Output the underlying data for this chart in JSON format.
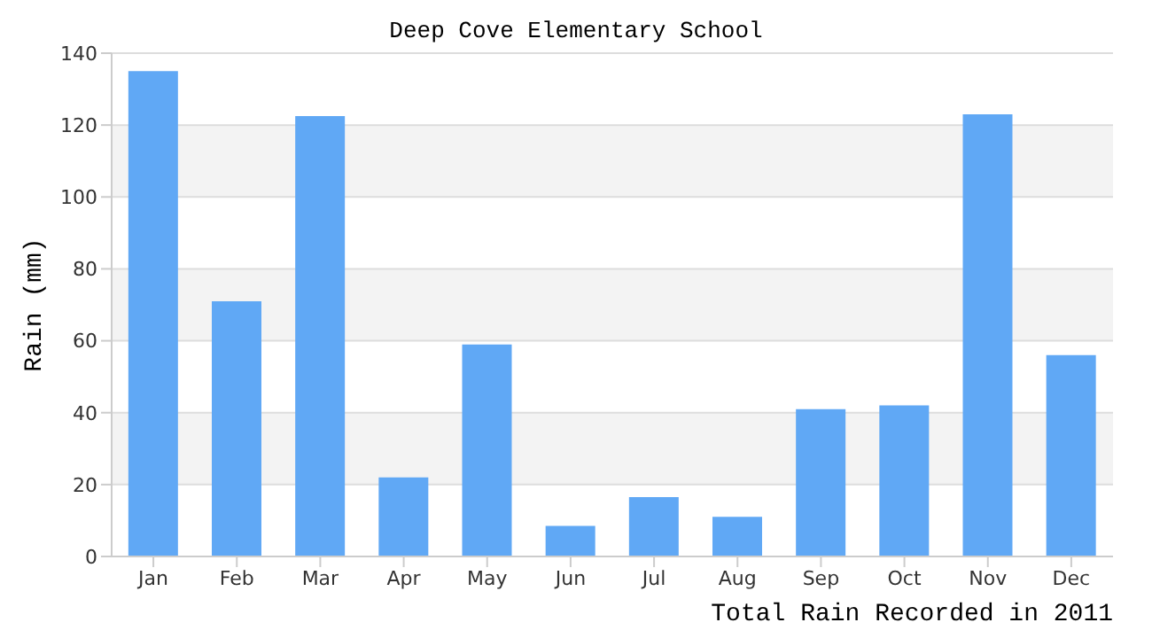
{
  "chart_data": {
    "type": "bar",
    "title": "Deep Cove Elementary School",
    "xlabel": "Total Rain Recorded in 2011",
    "ylabel": "Rain (mm)",
    "categories": [
      "Jan",
      "Feb",
      "Mar",
      "Apr",
      "May",
      "Jun",
      "Jul",
      "Aug",
      "Sep",
      "Oct",
      "Nov",
      "Dec"
    ],
    "values": [
      135,
      71,
      122.5,
      22,
      59,
      8.5,
      16.5,
      11,
      41,
      42,
      123,
      56
    ],
    "color": "#60a8f5",
    "ylim": [
      0,
      140
    ],
    "yticks": [
      0,
      20,
      40,
      60,
      80,
      100,
      120,
      140
    ],
    "grid": "y"
  }
}
